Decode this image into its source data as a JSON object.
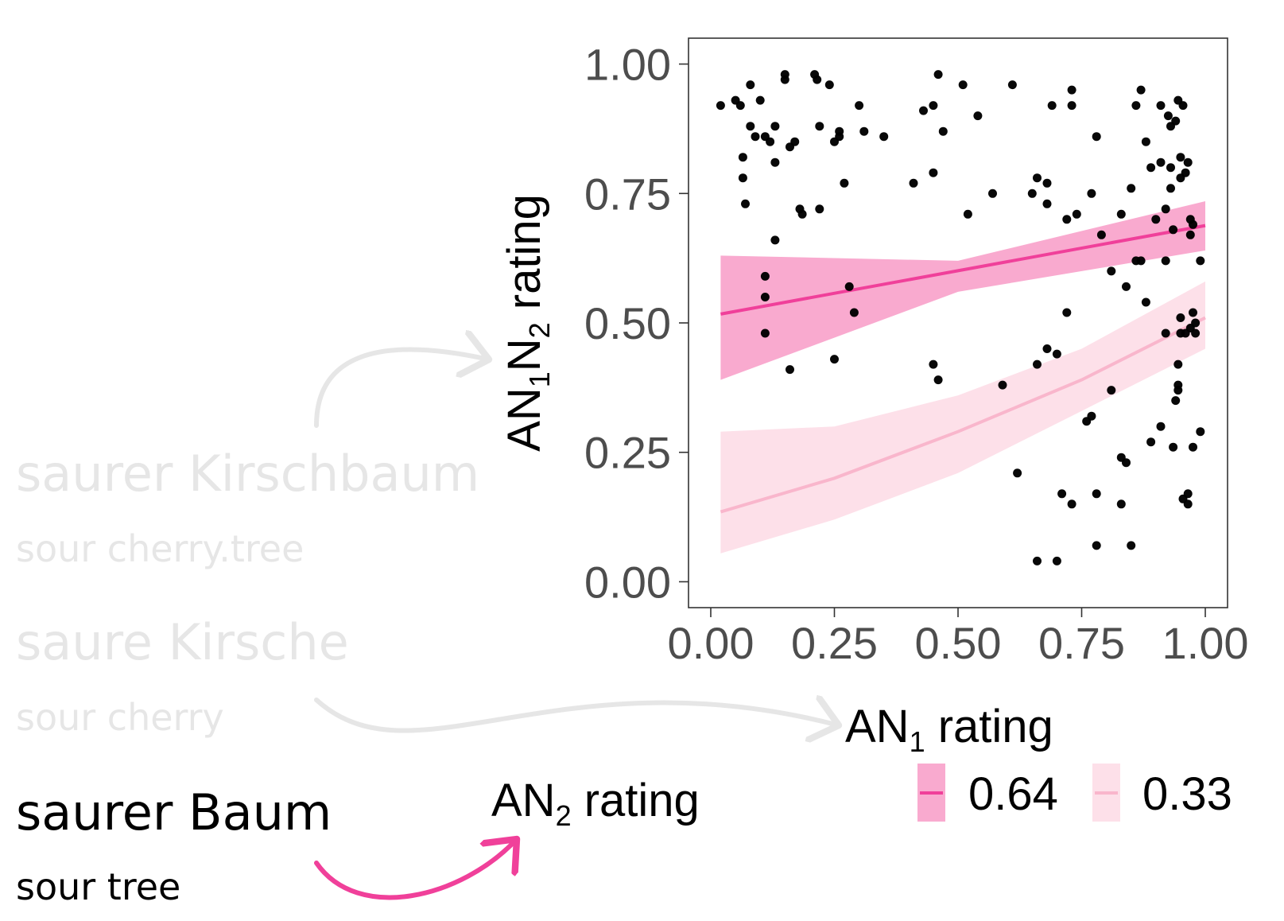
{
  "phrases": [
    {
      "german": "saurer Kirschbaum",
      "english": "sour cherry.tree",
      "color": "#e6e6e6"
    },
    {
      "german": "saure Kirsche",
      "english": "sour cherry",
      "color": "#e6e6e6"
    },
    {
      "german": "saurer Baum",
      "english": "sour tree",
      "color": "#000000"
    }
  ],
  "labels": {
    "an2_base": "AN",
    "an2_sub": "2",
    "an2_rest": " rating"
  },
  "colors": {
    "gray_arrow": "#e6e6e6",
    "accent_arrow": "#f0409a",
    "series_064": "#f0409a",
    "band_064": "#f9aacf",
    "series_033": "#f9b6cc",
    "band_033": "#fde0e9",
    "points": "#000000"
  },
  "chart_data": {
    "type": "scatter",
    "xlabel": {
      "base": "AN",
      "sub": "1",
      "rest": " rating"
    },
    "ylabel": {
      "base": "AN",
      "sub1": "1",
      "mid": "N",
      "sub2": "2",
      "rest": " rating"
    },
    "xlim": [
      -0.045,
      1.045
    ],
    "ylim": [
      -0.05,
      1.05
    ],
    "xticks": [
      "0.00",
      "0.25",
      "0.50",
      "0.75",
      "1.00"
    ],
    "yticks": [
      "0.00",
      "0.25",
      "0.50",
      "0.75",
      "1.00"
    ],
    "grid": false,
    "legend_position": "bottom",
    "fit_lines": [
      {
        "name": "0.64",
        "x": [
          0.02,
          1.0
        ],
        "y": [
          0.517,
          0.688
        ],
        "band": {
          "x": [
            0.02,
            0.5,
            1.0
          ],
          "lower": [
            0.39,
            0.56,
            0.64
          ],
          "upper": [
            0.63,
            0.62,
            0.735
          ]
        }
      },
      {
        "name": "0.33",
        "x": [
          0.02,
          0.25,
          0.5,
          0.75,
          1.0
        ],
        "y": [
          0.135,
          0.2,
          0.29,
          0.39,
          0.51
        ],
        "band": {
          "x": [
            0.02,
            0.25,
            0.5,
            0.75,
            1.0
          ],
          "lower": [
            0.055,
            0.12,
            0.21,
            0.33,
            0.45
          ],
          "upper": [
            0.29,
            0.3,
            0.36,
            0.45,
            0.58
          ]
        }
      }
    ],
    "points": [
      [
        0.02,
        0.92
      ],
      [
        0.05,
        0.93
      ],
      [
        0.06,
        0.92
      ],
      [
        0.065,
        0.82
      ],
      [
        0.065,
        0.78
      ],
      [
        0.07,
        0.73
      ],
      [
        0.08,
        0.96
      ],
      [
        0.08,
        0.88
      ],
      [
        0.09,
        0.86
      ],
      [
        0.1,
        0.93
      ],
      [
        0.11,
        0.86
      ],
      [
        0.12,
        0.85
      ],
      [
        0.13,
        0.88
      ],
      [
        0.13,
        0.81
      ],
      [
        0.13,
        0.66
      ],
      [
        0.15,
        0.98
      ],
      [
        0.15,
        0.97
      ],
      [
        0.16,
        0.84
      ],
      [
        0.17,
        0.85
      ],
      [
        0.18,
        0.72
      ],
      [
        0.185,
        0.71
      ],
      [
        0.21,
        0.98
      ],
      [
        0.215,
        0.97
      ],
      [
        0.22,
        0.88
      ],
      [
        0.22,
        0.72
      ],
      [
        0.24,
        0.96
      ],
      [
        0.25,
        0.85
      ],
      [
        0.26,
        0.86
      ],
      [
        0.26,
        0.87
      ],
      [
        0.27,
        0.77
      ],
      [
        0.3,
        0.92
      ],
      [
        0.31,
        0.87
      ],
      [
        0.35,
        0.86
      ],
      [
        0.41,
        0.77
      ],
      [
        0.43,
        0.91
      ],
      [
        0.45,
        0.92
      ],
      [
        0.45,
        0.79
      ],
      [
        0.46,
        0.98
      ],
      [
        0.47,
        0.87
      ],
      [
        0.51,
        0.96
      ],
      [
        0.52,
        0.71
      ],
      [
        0.54,
        0.9
      ],
      [
        0.57,
        0.75
      ],
      [
        0.61,
        0.96
      ],
      [
        0.65,
        0.75
      ],
      [
        0.66,
        0.78
      ],
      [
        0.68,
        0.77
      ],
      [
        0.68,
        0.73
      ],
      [
        0.69,
        0.92
      ],
      [
        0.72,
        0.7
      ],
      [
        0.73,
        0.95
      ],
      [
        0.73,
        0.92
      ],
      [
        0.74,
        0.71
      ],
      [
        0.77,
        0.75
      ],
      [
        0.78,
        0.86
      ],
      [
        0.79,
        0.67
      ],
      [
        0.81,
        0.6
      ],
      [
        0.83,
        0.71
      ],
      [
        0.84,
        0.57
      ],
      [
        0.85,
        0.76
      ],
      [
        0.86,
        0.92
      ],
      [
        0.86,
        0.62
      ],
      [
        0.87,
        0.95
      ],
      [
        0.87,
        0.62
      ],
      [
        0.88,
        0.85
      ],
      [
        0.88,
        0.54
      ],
      [
        0.89,
        0.8
      ],
      [
        0.9,
        0.7
      ],
      [
        0.91,
        0.92
      ],
      [
        0.91,
        0.81
      ],
      [
        0.92,
        0.72
      ],
      [
        0.92,
        0.62
      ],
      [
        0.925,
        0.9
      ],
      [
        0.93,
        0.88
      ],
      [
        0.93,
        0.8
      ],
      [
        0.93,
        0.76
      ],
      [
        0.935,
        0.68
      ],
      [
        0.94,
        0.89
      ],
      [
        0.945,
        0.93
      ],
      [
        0.95,
        0.82
      ],
      [
        0.95,
        0.78
      ],
      [
        0.955,
        0.92
      ],
      [
        0.96,
        0.79
      ],
      [
        0.965,
        0.81
      ],
      [
        0.97,
        0.7
      ],
      [
        0.97,
        0.67
      ],
      [
        0.975,
        0.69
      ],
      [
        0.99,
        0.62
      ],
      [
        0.11,
        0.59
      ],
      [
        0.11,
        0.55
      ],
      [
        0.11,
        0.48
      ],
      [
        0.28,
        0.57
      ],
      [
        0.29,
        0.52
      ],
      [
        0.16,
        0.41
      ],
      [
        0.25,
        0.43
      ],
      [
        0.45,
        0.42
      ],
      [
        0.46,
        0.39
      ],
      [
        0.59,
        0.38
      ],
      [
        0.66,
        0.42
      ],
      [
        0.68,
        0.45
      ],
      [
        0.7,
        0.44
      ],
      [
        0.72,
        0.52
      ],
      [
        0.62,
        0.21
      ],
      [
        0.66,
        0.04
      ],
      [
        0.7,
        0.04
      ],
      [
        0.71,
        0.17
      ],
      [
        0.73,
        0.15
      ],
      [
        0.76,
        0.31
      ],
      [
        0.77,
        0.32
      ],
      [
        0.78,
        0.17
      ],
      [
        0.78,
        0.07
      ],
      [
        0.81,
        0.37
      ],
      [
        0.83,
        0.24
      ],
      [
        0.83,
        0.15
      ],
      [
        0.84,
        0.23
      ],
      [
        0.85,
        0.07
      ],
      [
        0.89,
        0.27
      ],
      [
        0.91,
        0.3
      ],
      [
        0.92,
        0.48
      ],
      [
        0.935,
        0.26
      ],
      [
        0.94,
        0.35
      ],
      [
        0.945,
        0.38
      ],
      [
        0.945,
        0.37
      ],
      [
        0.945,
        0.42
      ],
      [
        0.95,
        0.48
      ],
      [
        0.95,
        0.51
      ],
      [
        0.955,
        0.16
      ],
      [
        0.96,
        0.48
      ],
      [
        0.965,
        0.17
      ],
      [
        0.965,
        0.15
      ],
      [
        0.97,
        0.49
      ],
      [
        0.975,
        0.26
      ],
      [
        0.975,
        0.52
      ],
      [
        0.98,
        0.48
      ],
      [
        0.98,
        0.5
      ],
      [
        0.99,
        0.29
      ]
    ]
  }
}
